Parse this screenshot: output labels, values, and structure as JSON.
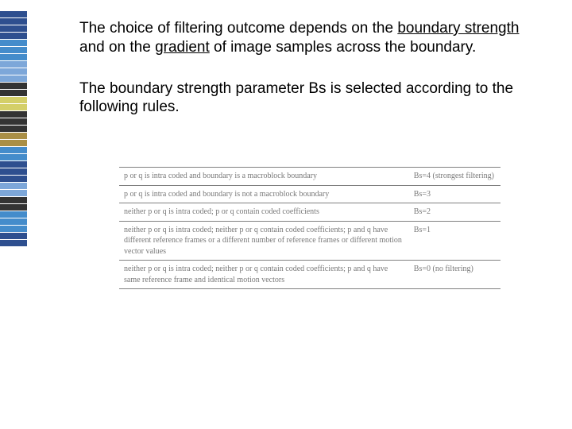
{
  "stripe_colors": [
    "#2e4f8f",
    "#2e4f8f",
    "#2e4f8f",
    "#2e4f8f",
    "#448ccb",
    "#448ccb",
    "#448ccb",
    "#7da7d9",
    "#7da7d9",
    "#7da7d9",
    "#333333",
    "#333333",
    "#d4cf68",
    "#d4cf68",
    "#333333",
    "#333333",
    "#333333",
    "#aa8f46",
    "#aa8f46",
    "#448ccb",
    "#448ccb",
    "#2e4f8f",
    "#2e4f8f",
    "#2e4f8f",
    "#7da7d9",
    "#7da7d9",
    "#333333",
    "#333333",
    "#448ccb",
    "#448ccb",
    "#448ccb",
    "#2e4f8f",
    "#2e4f8f"
  ],
  "para1": {
    "pre": "The choice of filtering outcome depends on the ",
    "u1": "boundary strength",
    "mid": " and on the ",
    "u2": "gradient",
    "post": " of image samples across the boundary."
  },
  "para2": "The boundary strength parameter Bs is selected according to the following rules.",
  "table": {
    "rows": [
      {
        "left": "p or q is intra coded and boundary is a macroblock boundary",
        "right": "Bs=4 (strongest filtering)"
      },
      {
        "left": "p or q is intra coded and boundary is not a macroblock boundary",
        "right": "Bs=3"
      },
      {
        "left": "neither p or q is intra coded; p or q contain coded coefficients",
        "right": "Bs=2"
      },
      {
        "left": "neither p or q is intra coded; neither p or q contain coded coefficients; p and q have different reference frames or a different number of reference frames or different motion vector values",
        "right": "Bs=1"
      },
      {
        "left": "neither p or q is intra coded; neither p or q contain coded coefficients; p and q have same reference frame and identical motion vectors",
        "right": "Bs=0 (no filtering)"
      }
    ]
  }
}
